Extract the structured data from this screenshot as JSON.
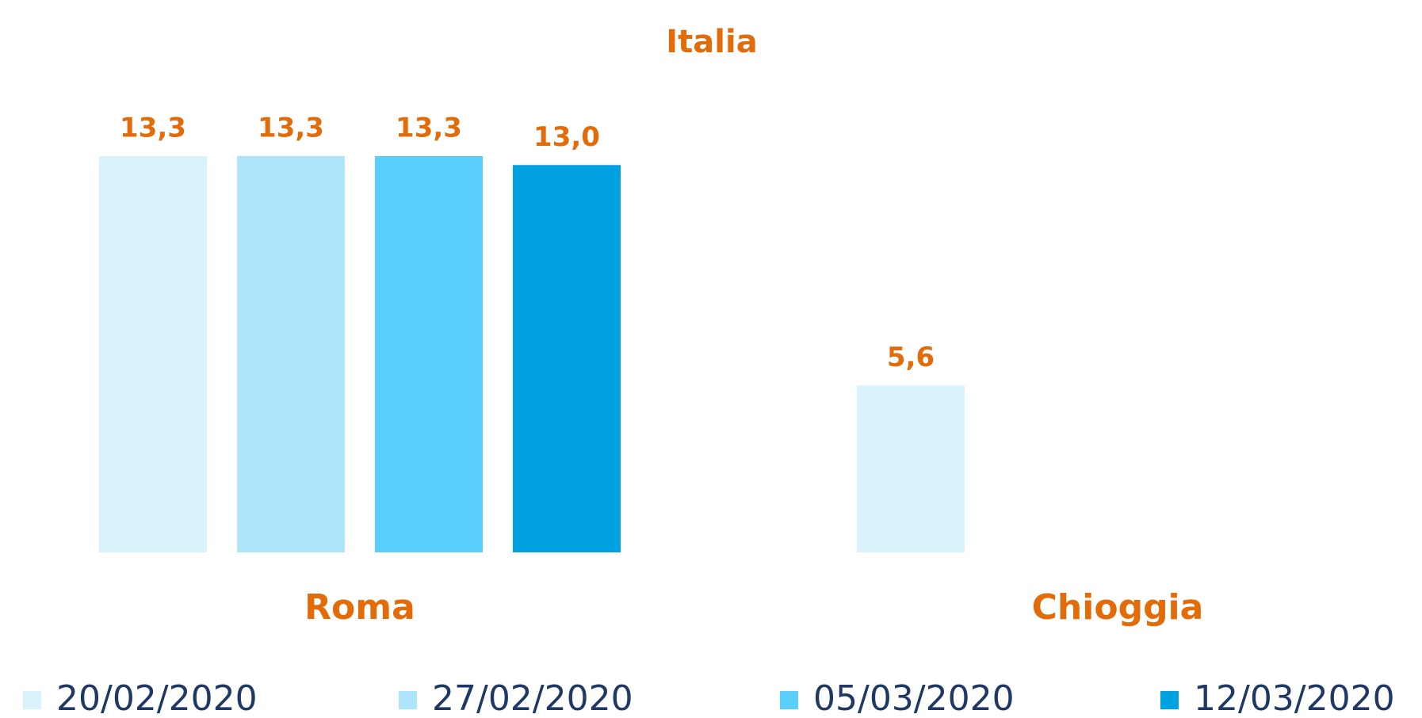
{
  "chart_data": {
    "type": "bar",
    "title": "Italia",
    "categories": [
      "Roma",
      "Chioggia"
    ],
    "series": [
      {
        "name": "20/02/2020",
        "color": "#d9f3fd",
        "values": [
          13.3,
          5.6
        ],
        "value_labels": [
          "13,3",
          "5,6"
        ]
      },
      {
        "name": "27/02/2020",
        "color": "#ade6fb",
        "values": [
          13.3,
          null
        ],
        "value_labels": [
          "13,3",
          null
        ]
      },
      {
        "name": "05/03/2020",
        "color": "#5bcffb",
        "values": [
          13.3,
          null
        ],
        "value_labels": [
          "13,3",
          null
        ]
      },
      {
        "name": "12/03/2020",
        "color": "#00a1e0",
        "values": [
          13.0,
          null
        ],
        "value_labels": [
          "13,0",
          null
        ]
      }
    ],
    "label_color": "#e36c0a",
    "legend": "bottom"
  }
}
